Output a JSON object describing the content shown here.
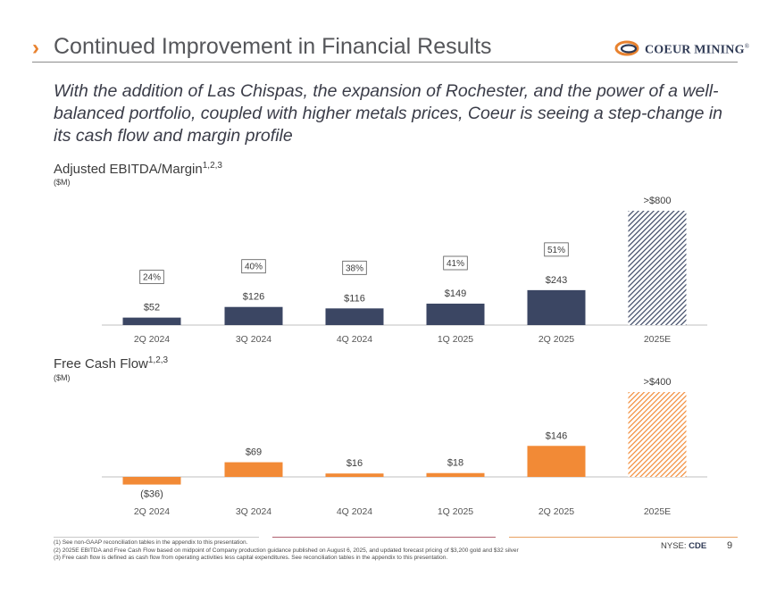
{
  "header": {
    "chevron": "›",
    "title": "Continued Improvement in Financial Results",
    "logo_text": "COEUR MINING",
    "logo_reg": "®"
  },
  "subtitle": "With the addition of Las Chispas, the expansion of Rochester, and the power of a well-balanced portfolio, coupled with higher metals prices, Coeur is seeing a step-change in its cash flow and margin profile",
  "colors": {
    "navy": "#3b4663",
    "orange": "#f28a36",
    "accent": "#e8822f"
  },
  "charts": {
    "ebitda": {
      "title": "Adjusted EBITDA/Margin",
      "title_sup": "1,2,3",
      "unit": "($M)"
    },
    "fcf": {
      "title": "Free Cash Flow",
      "title_sup": "1,2,3",
      "unit": "($M)"
    }
  },
  "chart_data": [
    {
      "type": "bar",
      "title": "Adjusted EBITDA/Margin",
      "unit": "($M)",
      "categories": [
        "2Q 2024",
        "3Q 2024",
        "4Q 2024",
        "1Q 2025",
        "2Q 2025",
        "2025E"
      ],
      "values": [
        52,
        126,
        116,
        149,
        243,
        800
      ],
      "value_labels": [
        "$52",
        "$126",
        "$116",
        "$149",
        "$243",
        ">$800"
      ],
      "margins": [
        "24%",
        "40%",
        "38%",
        "41%",
        "51%",
        ""
      ],
      "estimate_index": 5,
      "ylim": [
        0,
        800
      ],
      "color": "#3b4663"
    },
    {
      "type": "bar",
      "title": "Free Cash Flow",
      "unit": "($M)",
      "categories": [
        "2Q 2024",
        "3Q 2024",
        "4Q 2024",
        "1Q 2025",
        "2Q 2025",
        "2025E"
      ],
      "values": [
        -36,
        69,
        16,
        18,
        146,
        400
      ],
      "value_labels": [
        "($36)",
        "$69",
        "$16",
        "$18",
        "$146",
        ">$400"
      ],
      "estimate_index": 5,
      "ylim": [
        -36,
        400
      ],
      "color": "#f28a36"
    }
  ],
  "footer": {
    "footnotes": [
      "(1) See non-GAAP reconciliation tables in the appendix to this presentation.",
      "(2) 2025E EBITDA and Free Cash Flow based on midpoint of Company production guidance published on August 6, 2025, and updated forecast pricing of $3,200 gold and $32 silver",
      "(3) Free cash flow is defined as cash flow from operating activities less capital expenditures. See reconciliation tables in the appendix to this presentation."
    ],
    "ticker_prefix": "NYSE: ",
    "ticker": "CDE",
    "page_number": "9"
  }
}
